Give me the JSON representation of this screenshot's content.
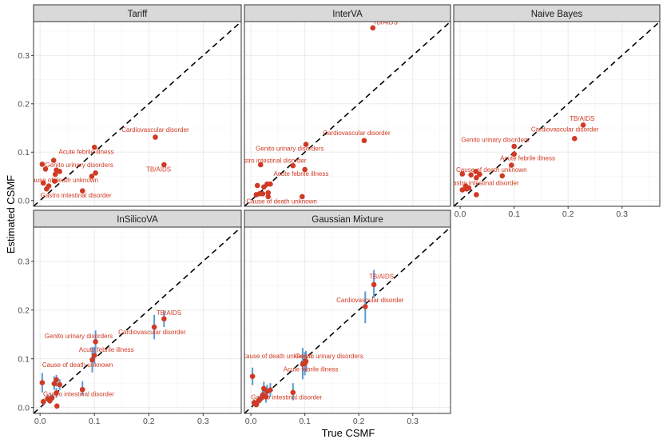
{
  "figure": {
    "xlabel": "True CSMF",
    "ylabel": "Estimated CSMF"
  },
  "colors": {
    "point": "#d03a24",
    "label": "#d03a24",
    "errorbar": "#5b9bd5",
    "diagonal": "#000000"
  },
  "chart_data": [
    {
      "type": "scatter",
      "title": "Tariff",
      "xlim": [
        -0.012,
        0.37
      ],
      "ylim": [
        -0.012,
        0.37
      ],
      "xticks": [
        0.0,
        0.1,
        0.2,
        0.3
      ],
      "yticks": [
        0.0,
        0.1,
        0.2,
        0.3
      ],
      "xticklabels": [
        "",
        "",
        "",
        ""
      ],
      "yticklabels": [
        "0.0",
        "0.1",
        "0.2",
        "0.3"
      ],
      "reference_line": "y = x",
      "points": [
        {
          "x": 0.212,
          "y": 0.131
        },
        {
          "x": 0.228,
          "y": 0.074
        },
        {
          "x": 0.1,
          "y": 0.11
        },
        {
          "x": 0.095,
          "y": 0.05
        },
        {
          "x": 0.102,
          "y": 0.057
        },
        {
          "x": 0.078,
          "y": 0.02
        },
        {
          "x": 0.025,
          "y": 0.083
        },
        {
          "x": 0.004,
          "y": 0.075
        },
        {
          "x": 0.01,
          "y": 0.065
        },
        {
          "x": 0.03,
          "y": 0.063
        },
        {
          "x": 0.036,
          "y": 0.06
        },
        {
          "x": 0.028,
          "y": 0.054
        },
        {
          "x": 0.006,
          "y": 0.036
        },
        {
          "x": 0.016,
          "y": 0.03
        },
        {
          "x": 0.027,
          "y": 0.04
        },
        {
          "x": 0.012,
          "y": 0.024
        }
      ],
      "labels": [
        {
          "text": "Cardiovascular disorder",
          "x": 0.212,
          "y": 0.142
        },
        {
          "text": "TB/AIDS",
          "x": 0.218,
          "y": 0.06
        },
        {
          "text": "Acute febrile illness",
          "x": 0.085,
          "y": 0.096
        },
        {
          "text": "Genito urinary disorders",
          "x": 0.072,
          "y": 0.069
        },
        {
          "text": "Cause of death unknown",
          "x": 0.042,
          "y": 0.038
        },
        {
          "text": "Gastro intestinal disorder",
          "x": 0.066,
          "y": 0.006
        }
      ]
    },
    {
      "type": "scatter",
      "title": "InterVA",
      "xlim": [
        -0.012,
        0.37
      ],
      "ylim": [
        -0.012,
        0.37
      ],
      "xticks": [
        0.0,
        0.1,
        0.2,
        0.3
      ],
      "yticks": [
        0.0,
        0.1,
        0.2,
        0.3
      ],
      "xticklabels": [
        "",
        "",
        "",
        ""
      ],
      "yticklabels": [
        "",
        "",
        "",
        ""
      ],
      "reference_line": "y = x",
      "points": [
        {
          "x": 0.226,
          "y": 0.357
        },
        {
          "x": 0.21,
          "y": 0.124
        },
        {
          "x": 0.102,
          "y": 0.116
        },
        {
          "x": 0.078,
          "y": 0.072
        },
        {
          "x": 0.1,
          "y": 0.064
        },
        {
          "x": 0.095,
          "y": 0.008
        },
        {
          "x": 0.018,
          "y": 0.074
        },
        {
          "x": 0.03,
          "y": 0.034
        },
        {
          "x": 0.036,
          "y": 0.034
        },
        {
          "x": 0.024,
          "y": 0.028
        },
        {
          "x": 0.012,
          "y": 0.031
        },
        {
          "x": 0.022,
          "y": 0.014
        },
        {
          "x": 0.032,
          "y": 0.016
        },
        {
          "x": 0.032,
          "y": 0.008
        },
        {
          "x": 0.01,
          "y": 0.012
        },
        {
          "x": 0.016,
          "y": 0.014
        }
      ],
      "labels": [
        {
          "text": "TB/AIDS",
          "x": 0.249,
          "y": 0.364
        },
        {
          "text": "Cardiovascular disorder",
          "x": 0.196,
          "y": 0.135
        },
        {
          "text": "Genito urinary disorders",
          "x": 0.072,
          "y": 0.103
        },
        {
          "text": "Gastro intestinal disorder",
          "x": 0.037,
          "y": 0.078
        },
        {
          "text": "Acute febrile illness",
          "x": 0.093,
          "y": 0.051
        },
        {
          "text": "Cause of death unknown",
          "x": 0.057,
          "y": -0.006
        }
      ]
    },
    {
      "type": "scatter",
      "title": "Naive Bayes",
      "xlim": [
        -0.012,
        0.37
      ],
      "ylim": [
        -0.012,
        0.37
      ],
      "xticks": [
        0.0,
        0.1,
        0.2,
        0.3
      ],
      "yticks": [
        0.0,
        0.1,
        0.2,
        0.3
      ],
      "xticklabels": [
        "0.0",
        "0.1",
        "0.2",
        "0.3"
      ],
      "yticklabels": [
        "",
        "",
        "",
        ""
      ],
      "reference_line": "y = x",
      "points": [
        {
          "x": 0.228,
          "y": 0.156
        },
        {
          "x": 0.212,
          "y": 0.128
        },
        {
          "x": 0.1,
          "y": 0.112
        },
        {
          "x": 0.1,
          "y": 0.096
        },
        {
          "x": 0.095,
          "y": 0.073
        },
        {
          "x": 0.078,
          "y": 0.051
        },
        {
          "x": 0.004,
          "y": 0.055
        },
        {
          "x": 0.02,
          "y": 0.053
        },
        {
          "x": 0.029,
          "y": 0.06
        },
        {
          "x": 0.036,
          "y": 0.054
        },
        {
          "x": 0.03,
          "y": 0.047
        },
        {
          "x": 0.01,
          "y": 0.03
        },
        {
          "x": 0.016,
          "y": 0.026
        },
        {
          "x": 0.004,
          "y": 0.022
        },
        {
          "x": 0.03,
          "y": 0.012
        },
        {
          "x": 0.012,
          "y": 0.024
        }
      ],
      "labels": [
        {
          "text": "TB/AIDS",
          "x": 0.226,
          "y": 0.165
        },
        {
          "text": "Cardiovascular disorder",
          "x": 0.194,
          "y": 0.143
        },
        {
          "text": "Genito urinary disorders",
          "x": 0.065,
          "y": 0.121
        },
        {
          "text": "Acute febrile illness",
          "x": 0.125,
          "y": 0.083
        },
        {
          "text": "Cause of death unknown",
          "x": 0.058,
          "y": 0.059
        },
        {
          "text": "Gastro intestinal disorder",
          "x": 0.043,
          "y": 0.032
        }
      ]
    },
    {
      "type": "scatter",
      "title": "InSilicoVA",
      "xlim": [
        -0.012,
        0.37
      ],
      "ylim": [
        -0.012,
        0.37
      ],
      "xticks": [
        0.0,
        0.1,
        0.2,
        0.3
      ],
      "yticks": [
        0.0,
        0.1,
        0.2,
        0.3
      ],
      "xticklabels": [
        "0.0",
        "0.1",
        "0.2",
        "0.3"
      ],
      "yticklabels": [
        "0.0",
        "0.1",
        "0.2",
        "0.3"
      ],
      "reference_line": "y = x",
      "points": [
        {
          "x": 0.228,
          "y": 0.182,
          "lo": 0.165,
          "hi": 0.199
        },
        {
          "x": 0.21,
          "y": 0.165,
          "lo": 0.14,
          "hi": 0.19
        },
        {
          "x": 0.102,
          "y": 0.135,
          "lo": 0.112,
          "hi": 0.158
        },
        {
          "x": 0.1,
          "y": 0.107,
          "lo": 0.09,
          "hi": 0.124
        },
        {
          "x": 0.096,
          "y": 0.098,
          "lo": 0.072,
          "hi": 0.124
        },
        {
          "x": 0.078,
          "y": 0.037,
          "lo": 0.025,
          "hi": 0.054
        },
        {
          "x": 0.004,
          "y": 0.051,
          "lo": 0.031,
          "hi": 0.071
        },
        {
          "x": 0.026,
          "y": 0.049,
          "lo": 0.036,
          "hi": 0.064
        },
        {
          "x": 0.03,
          "y": 0.057,
          "lo": 0.043,
          "hi": 0.067
        },
        {
          "x": 0.036,
          "y": 0.047,
          "lo": 0.036,
          "hi": 0.058
        },
        {
          "x": 0.03,
          "y": 0.03,
          "lo": 0.02,
          "hi": 0.04
        },
        {
          "x": 0.014,
          "y": 0.018,
          "lo": 0.012,
          "hi": 0.026
        },
        {
          "x": 0.018,
          "y": 0.014,
          "lo": 0.008,
          "hi": 0.02
        },
        {
          "x": 0.006,
          "y": 0.012,
          "lo": 0.006,
          "hi": 0.018
        },
        {
          "x": 0.031,
          "y": 0.003,
          "lo": 0.0,
          "hi": 0.008
        },
        {
          "x": 0.022,
          "y": 0.02,
          "lo": 0.014,
          "hi": 0.027
        }
      ],
      "labels": [
        {
          "text": "TB/AIDS",
          "x": 0.237,
          "y": 0.19
        },
        {
          "text": "Cardiovascular disorder",
          "x": 0.206,
          "y": 0.15
        },
        {
          "text": "Genito urinary disorders",
          "x": 0.071,
          "y": 0.142
        },
        {
          "text": "Acute febrile illness",
          "x": 0.122,
          "y": 0.114
        },
        {
          "text": "Cause of death unknown",
          "x": 0.069,
          "y": 0.083
        },
        {
          "text": "Gastro intestinal disorder",
          "x": 0.071,
          "y": 0.023
        }
      ]
    },
    {
      "type": "scatter",
      "title": "Gaussian Mixture",
      "xlim": [
        -0.012,
        0.37
      ],
      "ylim": [
        -0.012,
        0.37
      ],
      "xticks": [
        0.0,
        0.1,
        0.2,
        0.3
      ],
      "yticks": [
        0.0,
        0.1,
        0.2,
        0.3
      ],
      "xticklabels": [
        "0.0",
        "0.1",
        "0.2",
        "0.3"
      ],
      "yticklabels": [
        "",
        "",
        "",
        ""
      ],
      "reference_line": "y = x",
      "points": [
        {
          "x": 0.228,
          "y": 0.252,
          "lo": 0.225,
          "hi": 0.282
        },
        {
          "x": 0.212,
          "y": 0.207,
          "lo": 0.173,
          "hi": 0.238
        },
        {
          "x": 0.1,
          "y": 0.09,
          "lo": 0.066,
          "hi": 0.114
        },
        {
          "x": 0.102,
          "y": 0.095,
          "lo": 0.073,
          "hi": 0.116
        },
        {
          "x": 0.096,
          "y": 0.089,
          "lo": 0.058,
          "hi": 0.122
        },
        {
          "x": 0.078,
          "y": 0.031,
          "lo": 0.015,
          "hi": 0.05
        },
        {
          "x": 0.003,
          "y": 0.064,
          "lo": 0.046,
          "hi": 0.082
        },
        {
          "x": 0.024,
          "y": 0.039,
          "lo": 0.025,
          "hi": 0.053
        },
        {
          "x": 0.03,
          "y": 0.033,
          "lo": 0.02,
          "hi": 0.047
        },
        {
          "x": 0.036,
          "y": 0.036,
          "lo": 0.022,
          "hi": 0.05
        },
        {
          "x": 0.028,
          "y": 0.022,
          "lo": 0.01,
          "hi": 0.034
        },
        {
          "x": 0.014,
          "y": 0.014,
          "lo": 0.006,
          "hi": 0.022
        },
        {
          "x": 0.018,
          "y": 0.018,
          "lo": 0.01,
          "hi": 0.026
        },
        {
          "x": 0.006,
          "y": 0.01,
          "lo": 0.004,
          "hi": 0.016
        },
        {
          "x": 0.01,
          "y": 0.006,
          "lo": 0.002,
          "hi": 0.012
        },
        {
          "x": 0.022,
          "y": 0.026,
          "lo": 0.016,
          "hi": 0.036
        }
      ],
      "labels": [
        {
          "text": "TB/AIDS",
          "x": 0.242,
          "y": 0.264
        },
        {
          "text": "Cardiovascular disorder",
          "x": 0.221,
          "y": 0.216
        },
        {
          "text": "Cause of death unknown",
          "x": 0.048,
          "y": 0.101
        },
        {
          "text": "Genito urinary disorders",
          "x": 0.145,
          "y": 0.101
        },
        {
          "text": "Acute febrile illness",
          "x": 0.111,
          "y": 0.074
        },
        {
          "text": "Gastro intestinal disorder",
          "x": 0.066,
          "y": 0.017
        }
      ]
    }
  ]
}
